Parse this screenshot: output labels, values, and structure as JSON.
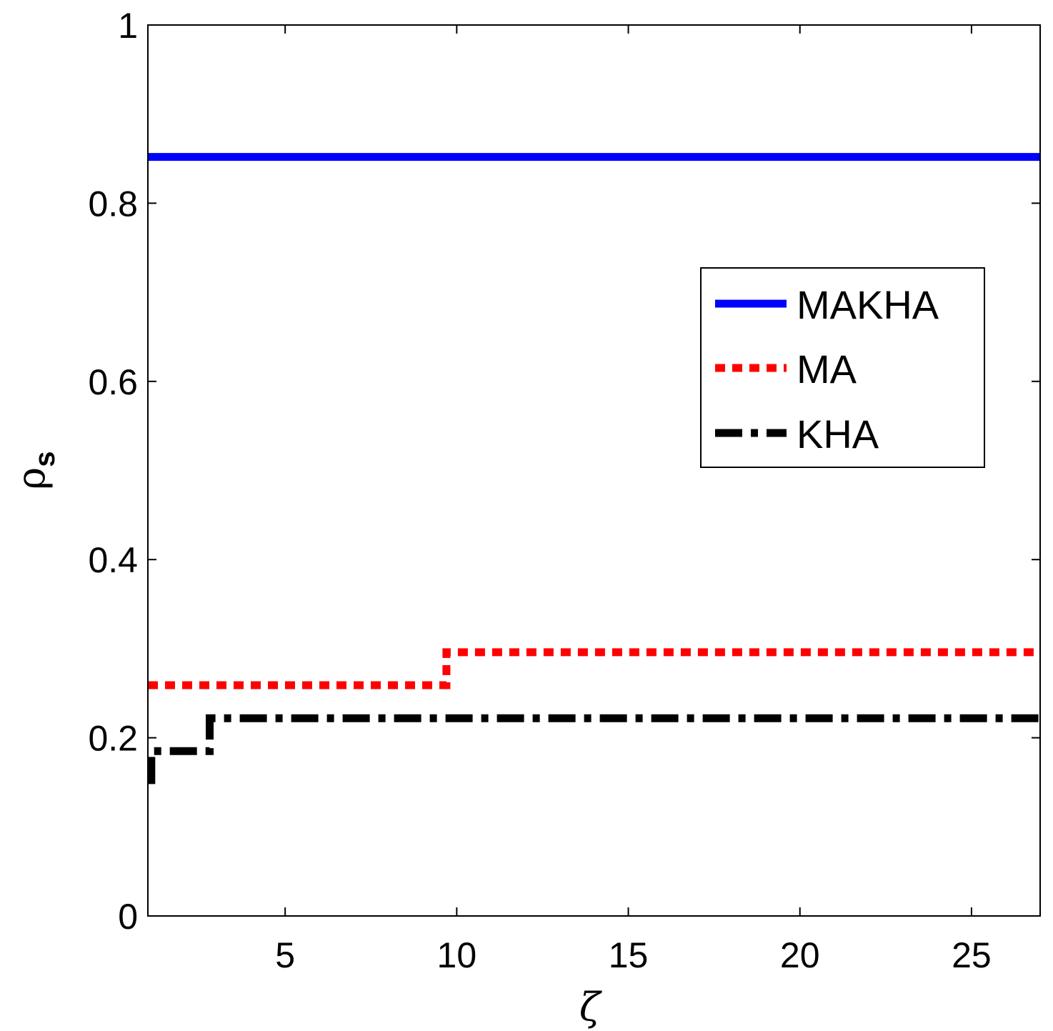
{
  "chart_data": {
    "type": "line",
    "xlabel": "ζ",
    "ylabel": "ρ",
    "ylabel_subscript": "s",
    "xlim": [
      1,
      27
    ],
    "ylim": [
      0,
      1
    ],
    "xticks": [
      5,
      10,
      15,
      20,
      25
    ],
    "yticks": [
      0,
      0.2,
      0.4,
      0.6,
      0.8,
      1
    ],
    "grid": false,
    "legend_position": "right",
    "series": [
      {
        "name": "MAKHA",
        "color": "#0000ff",
        "style": "solid",
        "x": [
          1,
          27
        ],
        "y": [
          0.852,
          0.852
        ]
      },
      {
        "name": "MA",
        "color": "#ff0000",
        "style": "dotted",
        "x": [
          1,
          9.7,
          9.7,
          27
        ],
        "y": [
          0.259,
          0.259,
          0.296,
          0.296
        ]
      },
      {
        "name": "KHA",
        "color": "#000000",
        "style": "dashdot",
        "x": [
          1.1,
          1.1,
          2.8,
          2.8,
          27
        ],
        "y": [
          0.148,
          0.185,
          0.185,
          0.222,
          0.222
        ]
      }
    ]
  }
}
